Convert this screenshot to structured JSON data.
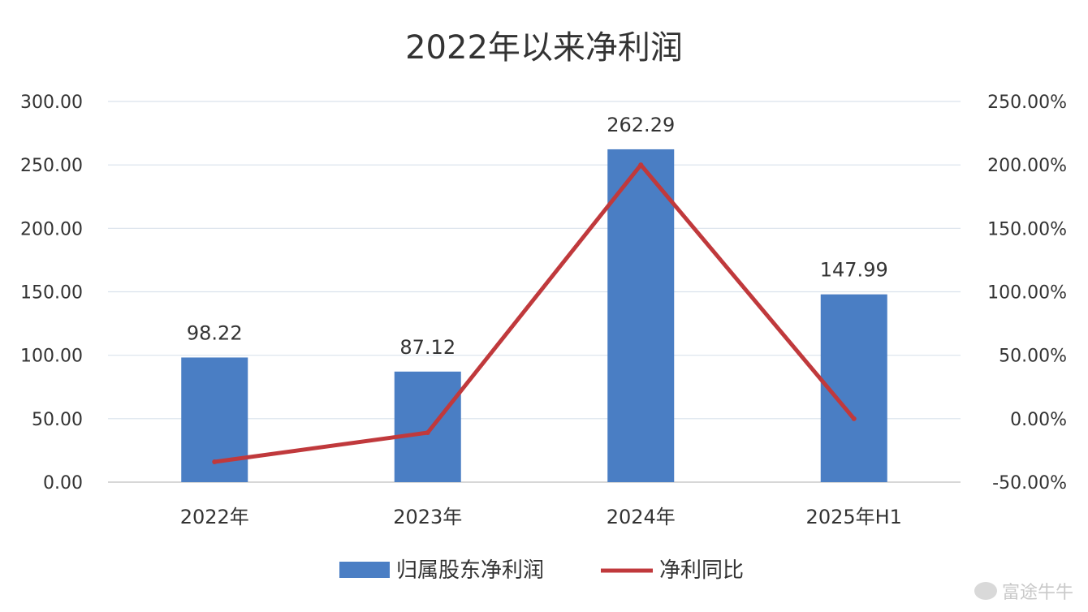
{
  "chart_data": {
    "type": "bar",
    "title": "2022年以来净利润",
    "categories": [
      "2022年",
      "2023年",
      "2024年",
      "2025年H1"
    ],
    "series": [
      {
        "name": "归属股东净利润",
        "type": "bar",
        "axis": "left",
        "values": [
          98.22,
          87.12,
          262.29,
          147.99
        ],
        "color": "#4a7ec4"
      },
      {
        "name": "净利同比",
        "type": "line",
        "axis": "right",
        "values": [
          -34,
          -11,
          200,
          0
        ],
        "color": "#c0393c"
      }
    ],
    "data_labels": [
      "98.22",
      "87.12",
      "262.29",
      "147.99"
    ],
    "y_left": {
      "ylim": [
        0,
        300
      ],
      "ticks": [
        0,
        50,
        100,
        150,
        200,
        250,
        300
      ],
      "tick_labels": [
        "0.00",
        "50.00",
        "100.00",
        "150.00",
        "200.00",
        "250.00",
        "300.00"
      ]
    },
    "y_right": {
      "ylim": [
        -50,
        250
      ],
      "ticks": [
        -50,
        0,
        50,
        100,
        150,
        200,
        250
      ],
      "tick_labels": [
        "-50.00%",
        "0.00%",
        "50.00%",
        "100.00%",
        "150.00%",
        "200.00%",
        "250.00%"
      ]
    },
    "grid": true,
    "legend_position": "bottom"
  },
  "watermark": {
    "text": "富途牛牛"
  }
}
